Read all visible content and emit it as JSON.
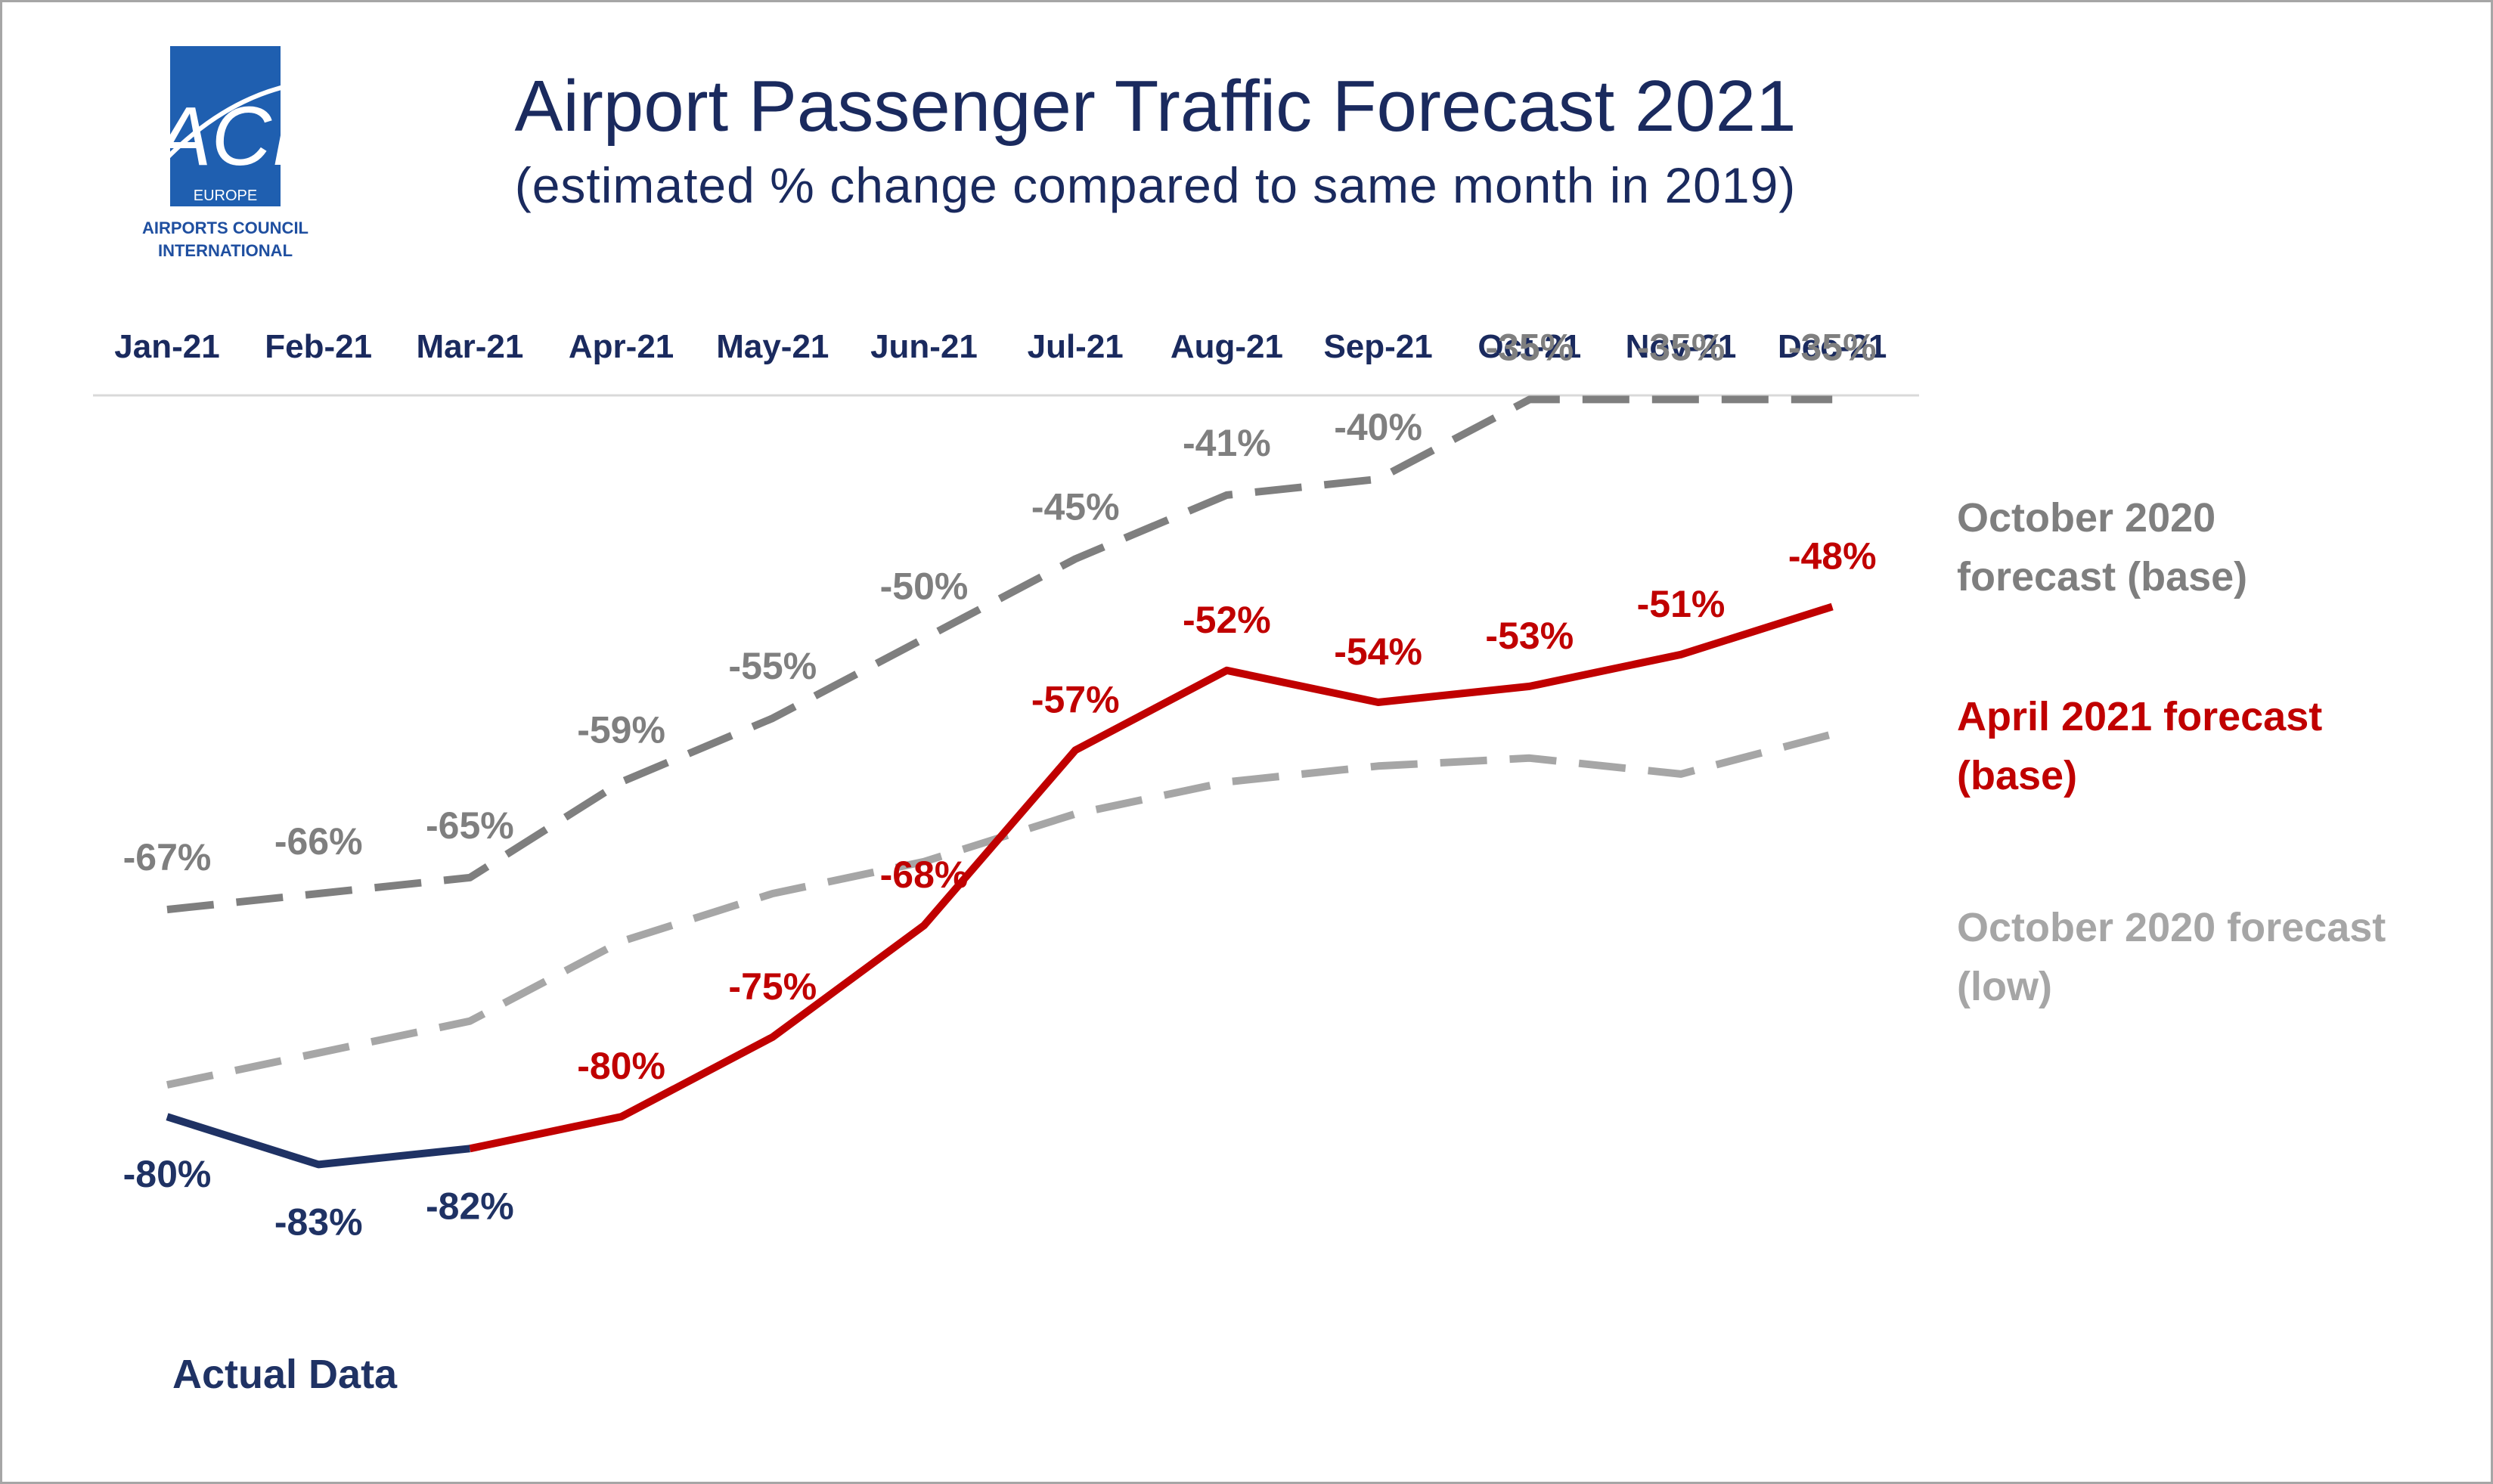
{
  "logo": {
    "mark": "ACI",
    "region": "EUROPE",
    "org_line1": "AIRPORTS COUNCIL",
    "org_line2": "INTERNATIONAL"
  },
  "colors": {
    "navy": "#1f3264",
    "red": "#c00000",
    "dark_gray": "#7f7f7f",
    "light_gray": "#a6a6a6",
    "title": "#1a2a5e",
    "logo_blue": "#1f5fb0"
  },
  "chart_data": {
    "type": "line",
    "title": "Airport Passenger Traffic Forecast 2021",
    "subtitle": "(estimated % change compared to same month in 2019)",
    "categories": [
      "Jan-21",
      "Feb-21",
      "Mar-21",
      "Apr-21",
      "May-21",
      "Jun-21",
      "Jul-21",
      "Aug-21",
      "Sep-21",
      "Oct-21",
      "Nov-21",
      "Dec-21"
    ],
    "ylim": [
      -90,
      -30
    ],
    "grid": false,
    "legend_position": "right",
    "series": [
      {
        "name": "October 2020 forecast (base)",
        "legend_line1": "October 2020",
        "legend_line2": "forecast (base)",
        "color": "#7f7f7f",
        "style": "dashed",
        "values": [
          -67,
          -66,
          -65,
          -59,
          -55,
          -50,
          -45,
          -41,
          -40,
          -35,
          -35,
          -35
        ],
        "labels": [
          "-67%",
          "-66%",
          "-65%",
          "-59%",
          "-55%",
          "-50%",
          "-45%",
          "-41%",
          "-40%",
          "-35%",
          "-35%",
          "-35%"
        ]
      },
      {
        "name": "October 2020 forecast (low)",
        "legend_line1": "October 2020 forecast",
        "legend_line2": "(low)",
        "color": "#a6a6a6",
        "style": "dashed",
        "values": [
          -78,
          -76,
          -74,
          -69,
          -66,
          -64,
          -61,
          -59,
          -58,
          -57.5,
          -58.5,
          -56
        ],
        "labels": []
      },
      {
        "name": "April 2021 forecast (base)",
        "legend_line1": "April 2021 forecast",
        "legend_line2": "(base)",
        "color": "#c00000",
        "style": "solid",
        "start_index": 2,
        "values": [
          null,
          null,
          -82,
          -80,
          -75,
          -68,
          -57,
          -52,
          -54,
          -53,
          -51,
          -48
        ],
        "labels": [
          "",
          "",
          "",
          "-80%",
          "-75%",
          "-68%",
          "-57%",
          "-52%",
          "-54%",
          "-53%",
          "-51%",
          "-48%"
        ]
      },
      {
        "name": "Actual Data",
        "color": "#1f3264",
        "style": "solid",
        "values": [
          -80,
          -83,
          -82,
          null,
          null,
          null,
          null,
          null,
          null,
          null,
          null,
          null
        ],
        "labels": [
          "-80%",
          "-83%",
          "-82%"
        ]
      }
    ]
  }
}
